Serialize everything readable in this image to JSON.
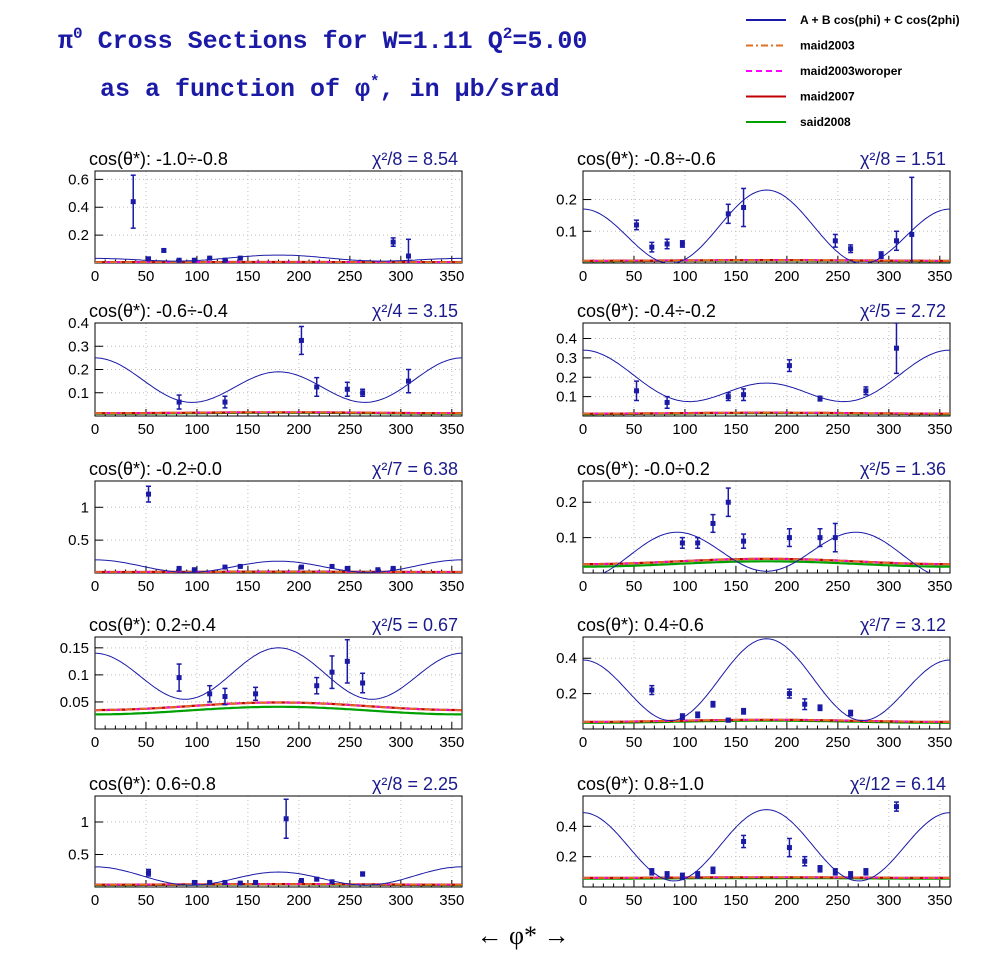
{
  "header": {
    "line1_prefix": "π",
    "line1_sup": "0",
    "line1_main": " Cross Sections for W=1.11  Q",
    "line1_sup2": "2",
    "line1_end": "=5.00",
    "line2_prefix": "as a function of φ",
    "line2_sup": "*",
    "line2_end": ", in μb/srad"
  },
  "legend": {
    "items": [
      {
        "label": "A + B cos(phi) + C cos(2phi)",
        "color": "#1a1aa6",
        "dash": "solid"
      },
      {
        "label": "maid2003",
        "color": "#e07020",
        "dash": "dashdot"
      },
      {
        "label": "maid2003woroper",
        "color": "#ff00ff",
        "dash": "dash"
      },
      {
        "label": "maid2007",
        "color": "#c00000",
        "dash": "solid"
      },
      {
        "label": "said2008",
        "color": "#00a000",
        "dash": "solid"
      }
    ]
  },
  "xaxis": {
    "label": "←   φ*   →",
    "ticks": [
      0,
      50,
      100,
      150,
      200,
      250,
      300,
      350
    ],
    "range": [
      0,
      360
    ]
  },
  "chart_data": [
    {
      "type": "scatter",
      "title": "cos(θ*): -1.0÷-0.8",
      "chi_label": "χ²/8 = 8.54",
      "ylim": [
        0,
        0.66
      ],
      "yticks": [
        0.2,
        0.4,
        0.6
      ],
      "ytick_labels": [
        "0.2",
        "0.4",
        "0.6"
      ],
      "fit": {
        "A": 0.03,
        "B": -0.012,
        "C": 0.015
      },
      "models": {
        "maid2003": 0.006,
        "maid2003woroper": 0.006,
        "maid2007": 0.006,
        "said2008": 0.005,
        "amp": 0.001
      },
      "points": [
        [
          37.5,
          0.44,
          0.19
        ],
        [
          52.5,
          0.03,
          0.005
        ],
        [
          67.5,
          0.09,
          0.01
        ],
        [
          82.5,
          0.02,
          0.005
        ],
        [
          97.5,
          0.02,
          0.005
        ],
        [
          112.5,
          0.035,
          0.005
        ],
        [
          127.5,
          0.02,
          0.005
        ],
        [
          142.5,
          0.035,
          0.005
        ],
        [
          292.5,
          0.15,
          0.03
        ],
        [
          307.5,
          0.05,
          0.12
        ]
      ]
    },
    {
      "type": "scatter",
      "title": "cos(θ*): -0.8÷-0.6",
      "chi_label": "χ²/8 = 1.51",
      "ylim": [
        0,
        0.29
      ],
      "yticks": [
        0.1,
        0.2
      ],
      "ytick_labels": [
        "0.1",
        "0.2"
      ],
      "fit": {
        "A": 0.1,
        "B": -0.03,
        "C": 0.1
      },
      "models": {
        "maid2003": 0.007,
        "maid2003woroper": 0.007,
        "maid2007": 0.007,
        "said2008": 0.006,
        "amp": 0.002
      },
      "points": [
        [
          52.5,
          0.12,
          0.015
        ],
        [
          67.5,
          0.05,
          0.015
        ],
        [
          82.5,
          0.06,
          0.015
        ],
        [
          97.5,
          0.06,
          0.01
        ],
        [
          142.5,
          0.155,
          0.03
        ],
        [
          157.5,
          0.175,
          0.06
        ],
        [
          247.5,
          0.07,
          0.02
        ],
        [
          262.5,
          0.045,
          0.012
        ],
        [
          292.5,
          0.025,
          0.01
        ],
        [
          307.5,
          0.07,
          0.03
        ],
        [
          322.5,
          0.09,
          0.18
        ]
      ]
    },
    {
      "type": "scatter",
      "title": "cos(θ*): -0.6÷-0.4",
      "chi_label": "χ²/4 = 3.15",
      "ylim": [
        0,
        0.4
      ],
      "yticks": [
        0.1,
        0.2,
        0.3,
        0.4
      ],
      "ytick_labels": [
        "0.1",
        "0.2",
        "0.3",
        "0.4"
      ],
      "fit": {
        "A": 0.14,
        "B": 0.03,
        "C": 0.08
      },
      "models": {
        "maid2003": 0.012,
        "maid2003woroper": 0.012,
        "maid2007": 0.012,
        "said2008": 0.01,
        "amp": 0.004
      },
      "points": [
        [
          82.5,
          0.06,
          0.03
        ],
        [
          127.5,
          0.06,
          0.025
        ],
        [
          202.5,
          0.325,
          0.06
        ],
        [
          217.5,
          0.125,
          0.04
        ],
        [
          247.5,
          0.115,
          0.03
        ],
        [
          262.5,
          0.1,
          0.015
        ],
        [
          307.5,
          0.15,
          0.05
        ]
      ]
    },
    {
      "type": "scatter",
      "title": "cos(θ*): -0.4÷-0.2",
      "chi_label": "χ²/5 = 2.72",
      "ylim": [
        0,
        0.48
      ],
      "yticks": [
        0.1,
        0.2,
        0.3,
        0.4
      ],
      "ytick_labels": [
        "0.1",
        "0.2",
        "0.3",
        "0.4"
      ],
      "fit": {
        "A": 0.17,
        "B": 0.085,
        "C": 0.085
      },
      "models": {
        "maid2003": 0.012,
        "maid2003woroper": 0.012,
        "maid2007": 0.012,
        "said2008": 0.01,
        "amp": 0.005
      },
      "points": [
        [
          52.5,
          0.13,
          0.05
        ],
        [
          82.5,
          0.07,
          0.03
        ],
        [
          142.5,
          0.1,
          0.02
        ],
        [
          157.5,
          0.11,
          0.03
        ],
        [
          202.5,
          0.26,
          0.03
        ],
        [
          232.5,
          0.09,
          0.012
        ],
        [
          277.5,
          0.13,
          0.02
        ],
        [
          307.5,
          0.35,
          0.13
        ]
      ]
    },
    {
      "type": "scatter",
      "title": "cos(θ*): -0.2÷0.0",
      "chi_label": "χ²/7 = 6.38",
      "ylim": [
        0,
        1.4
      ],
      "yticks": [
        0.5,
        1
      ],
      "ytick_labels": [
        "0.5",
        "1"
      ],
      "fit": {
        "A": 0.1,
        "B": 0.01,
        "C": 0.09
      },
      "models": {
        "maid2003": 0.015,
        "maid2003woroper": 0.015,
        "maid2007": 0.015,
        "said2008": 0.012,
        "amp": 0.005
      },
      "points": [
        [
          52.5,
          1.2,
          0.12
        ],
        [
          82.5,
          0.07,
          0.01
        ],
        [
          97.5,
          0.05,
          0.01
        ],
        [
          127.5,
          0.09,
          0.01
        ],
        [
          142.5,
          0.1,
          0.01
        ],
        [
          202.5,
          0.09,
          0.01
        ],
        [
          232.5,
          0.1,
          0.02
        ],
        [
          247.5,
          0.07,
          0.01
        ],
        [
          277.5,
          0.05,
          0.01
        ],
        [
          292.5,
          0.07,
          0.01
        ]
      ]
    },
    {
      "type": "scatter",
      "title": "cos(θ*): -0.0÷0.2",
      "chi_label": "χ²/5 = 1.36",
      "ylim": [
        0,
        0.26
      ],
      "yticks": [
        0.1,
        0.2
      ],
      "ytick_labels": [
        "0.1",
        "0.2"
      ],
      "fit": {
        "A": 0.055,
        "B": -0.01,
        "C": -0.06
      },
      "models": {
        "maid2003": 0.025,
        "maid2003woroper": 0.025,
        "maid2007": 0.025,
        "said2008": 0.018,
        "amp": 0.015
      },
      "points": [
        [
          97.5,
          0.085,
          0.015
        ],
        [
          112.5,
          0.085,
          0.015
        ],
        [
          127.5,
          0.14,
          0.025
        ],
        [
          142.5,
          0.2,
          0.04
        ],
        [
          157.5,
          0.09,
          0.02
        ],
        [
          202.5,
          0.1,
          0.025
        ],
        [
          232.5,
          0.1,
          0.025
        ],
        [
          247.5,
          0.1,
          0.04
        ]
      ]
    },
    {
      "type": "scatter",
      "title": "cos(θ*): 0.2÷0.4",
      "chi_label": "χ²/5 = 0.67",
      "ylim": [
        0,
        0.17
      ],
      "yticks": [
        0.05,
        0.1,
        0.15
      ],
      "ytick_labels": [
        "0.05",
        "0.1",
        "0.15"
      ],
      "fit": {
        "A": 0.1,
        "B": -0.005,
        "C": 0.045
      },
      "models": {
        "maid2003": 0.035,
        "maid2003woroper": 0.035,
        "maid2007": 0.035,
        "said2008": 0.027,
        "amp": 0.014
      },
      "points": [
        [
          82.5,
          0.095,
          0.025
        ],
        [
          112.5,
          0.065,
          0.015
        ],
        [
          127.5,
          0.06,
          0.015
        ],
        [
          157.5,
          0.065,
          0.012
        ],
        [
          217.5,
          0.08,
          0.015
        ],
        [
          232.5,
          0.105,
          0.03
        ],
        [
          247.5,
          0.125,
          0.04
        ],
        [
          262.5,
          0.085,
          0.018
        ]
      ]
    },
    {
      "type": "scatter",
      "title": "cos(θ*): 0.4÷0.6",
      "chi_label": "χ²/7 = 3.12",
      "ylim": [
        0,
        0.52
      ],
      "yticks": [
        0.2,
        0.4
      ],
      "ytick_labels": [
        "0.2",
        "0.4"
      ],
      "fit": {
        "A": 0.25,
        "B": -0.06,
        "C": 0.2
      },
      "models": {
        "maid2003": 0.04,
        "maid2003woroper": 0.04,
        "maid2007": 0.04,
        "said2008": 0.035,
        "amp": 0.012
      },
      "points": [
        [
          67.5,
          0.22,
          0.025
        ],
        [
          97.5,
          0.07,
          0.015
        ],
        [
          112.5,
          0.08,
          0.015
        ],
        [
          127.5,
          0.14,
          0.015
        ],
        [
          142.5,
          0.05,
          0.01
        ],
        [
          157.5,
          0.1,
          0.015
        ],
        [
          202.5,
          0.2,
          0.025
        ],
        [
          217.5,
          0.14,
          0.03
        ],
        [
          232.5,
          0.12,
          0.015
        ],
        [
          262.5,
          0.09,
          0.015
        ]
      ]
    },
    {
      "type": "scatter",
      "title": "cos(θ*): 0.6÷0.8",
      "chi_label": "χ²/8 = 2.25",
      "ylim": [
        0,
        1.4
      ],
      "yticks": [
        0.5,
        1
      ],
      "ytick_labels": [
        "0.5",
        "1"
      ],
      "fit": {
        "A": 0.15,
        "B": 0.04,
        "C": 0.12
      },
      "models": {
        "maid2003": 0.035,
        "maid2003woroper": 0.035,
        "maid2007": 0.035,
        "said2008": 0.03,
        "amp": 0.01
      },
      "points": [
        [
          52.5,
          0.22,
          0.05
        ],
        [
          97.5,
          0.07,
          0.01
        ],
        [
          112.5,
          0.07,
          0.01
        ],
        [
          127.5,
          0.07,
          0.01
        ],
        [
          142.5,
          0.06,
          0.01
        ],
        [
          157.5,
          0.07,
          0.01
        ],
        [
          187.5,
          1.05,
          0.3
        ],
        [
          202.5,
          0.1,
          0.01
        ],
        [
          217.5,
          0.12,
          0.02
        ],
        [
          232.5,
          0.08,
          0.01
        ],
        [
          262.5,
          0.2,
          0.03
        ]
      ]
    },
    {
      "type": "scatter",
      "title": "cos(θ*): 0.8÷1.0",
      "chi_label": "χ²/12 = 6.14",
      "ylim": [
        0,
        0.6
      ],
      "yticks": [
        0.2,
        0.4
      ],
      "ytick_labels": [
        "0.2",
        "0.4"
      ],
      "fit": {
        "A": 0.27,
        "B": -0.01,
        "C": 0.23
      },
      "models": {
        "maid2003": 0.06,
        "maid2003woroper": 0.06,
        "maid2007": 0.06,
        "said2008": 0.055,
        "amp": 0.004
      },
      "points": [
        [
          67.5,
          0.1,
          0.02
        ],
        [
          82.5,
          0.08,
          0.02
        ],
        [
          97.5,
          0.07,
          0.02
        ],
        [
          112.5,
          0.08,
          0.02
        ],
        [
          127.5,
          0.11,
          0.02
        ],
        [
          157.5,
          0.3,
          0.04
        ],
        [
          202.5,
          0.26,
          0.06
        ],
        [
          217.5,
          0.17,
          0.03
        ],
        [
          232.5,
          0.12,
          0.02
        ],
        [
          247.5,
          0.1,
          0.02
        ],
        [
          262.5,
          0.08,
          0.02
        ],
        [
          277.5,
          0.1,
          0.02
        ],
        [
          307.5,
          0.53,
          0.03
        ]
      ]
    }
  ]
}
